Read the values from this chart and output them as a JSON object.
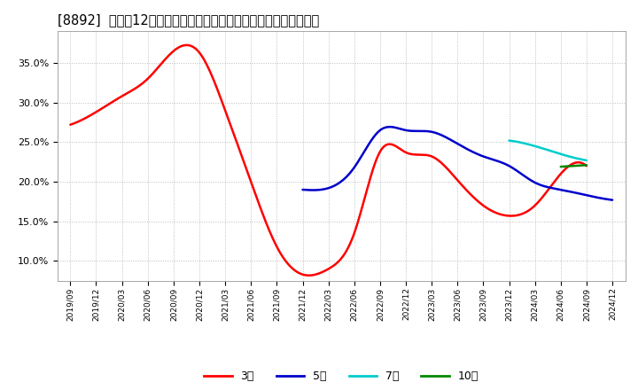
{
  "title": "[8892]  売上高12か月移動合計の対前年同期増減率の平均値の推移",
  "title_fontsize": 10.5,
  "background_color": "#ffffff",
  "plot_background_color": "#ffffff",
  "grid_color": "#bbbbbb",
  "ylim": [
    0.075,
    0.39
  ],
  "yticks": [
    0.1,
    0.15,
    0.2,
    0.25,
    0.3,
    0.35
  ],
  "series": {
    "3年": {
      "color": "#ff0000",
      "x": [
        0,
        1,
        2,
        3,
        4,
        5,
        6,
        7,
        8,
        9,
        10,
        11,
        12,
        13,
        14,
        15,
        16,
        17,
        18,
        19,
        20
      ],
      "y": [
        0.272,
        0.288,
        0.308,
        0.33,
        0.365,
        0.363,
        0.29,
        0.2,
        0.118,
        0.083,
        0.09,
        0.135,
        0.238,
        0.237,
        0.232,
        0.202,
        0.17,
        0.157,
        0.17,
        0.21,
        0.22
      ]
    },
    "5年": {
      "color": "#0000cc",
      "x": [
        9,
        10,
        11,
        12,
        13,
        14,
        15,
        16,
        17,
        18,
        19,
        20,
        21
      ],
      "y": [
        0.19,
        0.192,
        0.218,
        0.265,
        0.265,
        0.263,
        0.248,
        0.232,
        0.22,
        0.199,
        0.19,
        0.183,
        0.177
      ]
    },
    "7年": {
      "color": "#00cccc",
      "x": [
        17,
        18,
        19,
        20
      ],
      "y": [
        0.252,
        0.245,
        0.235,
        0.227
      ]
    },
    "10年": {
      "color": "#008800",
      "x": [
        19,
        20
      ],
      "y": [
        0.219,
        0.221
      ]
    }
  },
  "xtick_labels": [
    "2019/09",
    "2019/12",
    "2020/03",
    "2020/06",
    "2020/09",
    "2020/12",
    "2021/03",
    "2021/06",
    "2021/09",
    "2021/12",
    "2022/03",
    "2022/06",
    "2022/09",
    "2022/12",
    "2023/03",
    "2023/06",
    "2023/09",
    "2023/12",
    "2024/03",
    "2024/06",
    "2024/09",
    "2024/12"
  ],
  "legend_entries": [
    "3年",
    "5年",
    "7年",
    "10年"
  ],
  "legend_colors": [
    "#ff0000",
    "#0000cc",
    "#00cccc",
    "#008800"
  ]
}
